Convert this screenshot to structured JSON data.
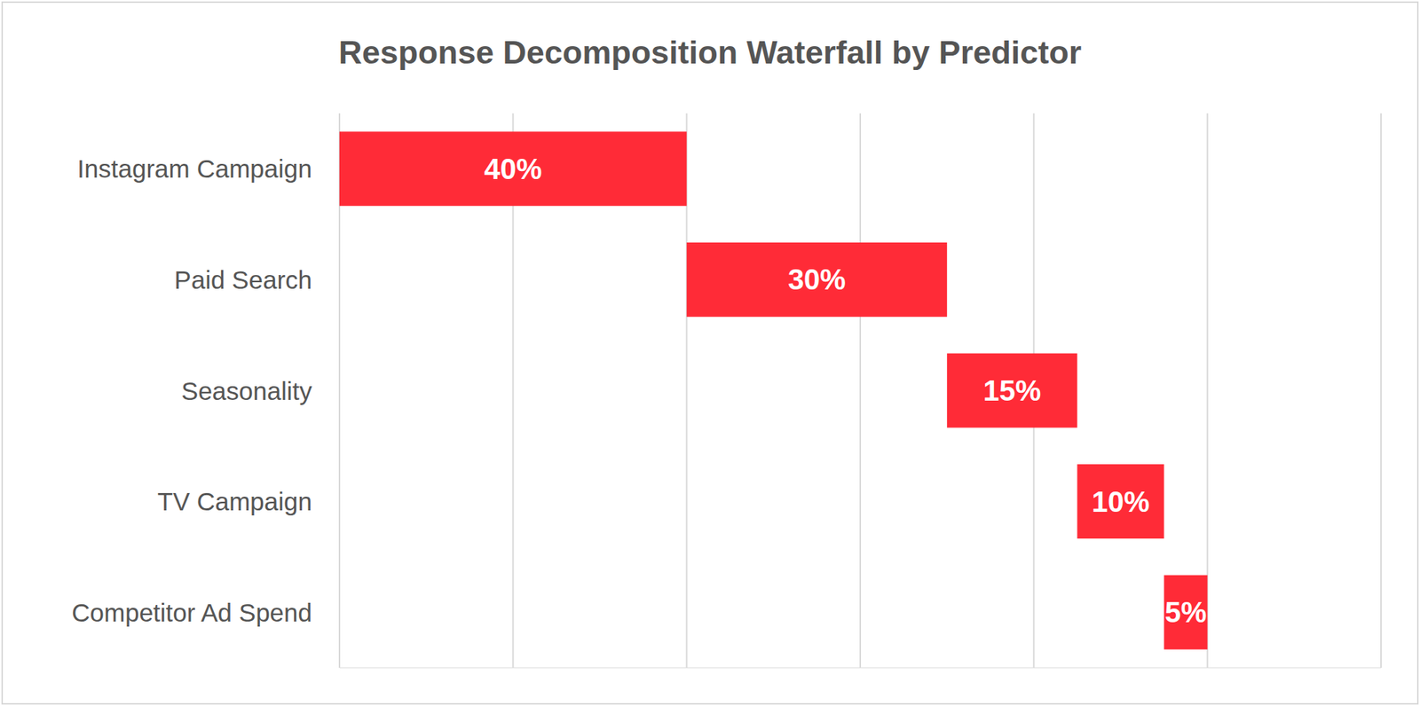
{
  "chart_data": {
    "type": "waterfall",
    "orientation": "horizontal",
    "title": "Response Decomposition Waterfall by Predictor",
    "categories": [
      "Instagram Campaign",
      "Paid Search",
      "Seasonality",
      "TV Campaign",
      "Competitor Ad Spend"
    ],
    "values": [
      40,
      30,
      15,
      10,
      5
    ],
    "value_labels": [
      "40%",
      "30%",
      "15%",
      "10%",
      "5%"
    ],
    "color": "#ff2b37",
    "xlim": [
      0,
      120
    ],
    "xticks": [
      0,
      20,
      40,
      60,
      80,
      100,
      120
    ],
    "grid": true,
    "data_labels": true,
    "tick_labels": "y"
  }
}
